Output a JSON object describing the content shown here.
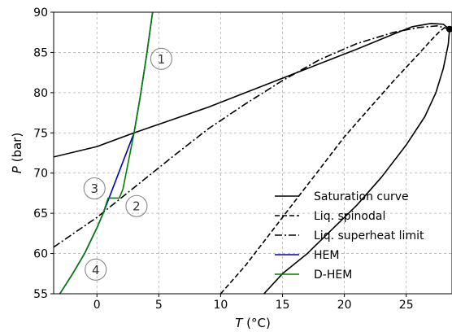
{
  "chart_data": {
    "type": "line",
    "xlabel": "T (°C)",
    "ylabel": "P (bar)",
    "xlim": [
      -3.5,
      28.7
    ],
    "ylim": [
      55,
      90
    ],
    "xticks": [
      0,
      5,
      10,
      15,
      20,
      25
    ],
    "yticks": [
      55,
      60,
      65,
      70,
      75,
      80,
      85,
      90
    ],
    "grid": true,
    "legend_position": "lower-right",
    "series": [
      {
        "name": "Saturation curve",
        "color": "#000000",
        "style": "solid",
        "x": [
          -3.5,
          0,
          3,
          6,
          9,
          12,
          15,
          18,
          21,
          24,
          25.5,
          27,
          28.0,
          28.4,
          28.5,
          28.4,
          28.0,
          27.4,
          26.5,
          25.0,
          23.0,
          21.0,
          19.0,
          17.0,
          15.0,
          13.5
        ],
        "y": [
          72.0,
          73.3,
          75.0,
          76.6,
          78.2,
          80.0,
          81.8,
          83.6,
          85.4,
          87.3,
          88.2,
          88.6,
          88.5,
          88.0,
          87.9,
          86.0,
          83.0,
          80.0,
          77.0,
          73.5,
          69.5,
          66.0,
          63.0,
          60.0,
          57.5,
          55.0
        ]
      },
      {
        "name": "Liq. spinodal",
        "color": "#000000",
        "style": "dashed",
        "x": [
          10.0,
          12.0,
          14.0,
          16.0,
          18.0,
          20.0,
          22.0,
          24.0,
          26.0,
          27.0,
          27.7,
          28.2,
          28.5
        ],
        "y": [
          55.0,
          58.5,
          62.5,
          66.5,
          70.5,
          74.5,
          78.0,
          81.5,
          84.8,
          86.5,
          87.6,
          88.2,
          88.0
        ]
      },
      {
        "name": "Liq. superheat limit",
        "color": "#000000",
        "style": "dashdot",
        "x": [
          -3.5,
          0,
          3,
          6,
          9,
          12,
          15,
          18,
          21,
          24,
          26,
          27.5,
          28.5
        ],
        "y": [
          60.8,
          64.5,
          68.2,
          71.9,
          75.5,
          78.6,
          81.5,
          84.1,
          86.1,
          87.5,
          88.1,
          88.3,
          87.9
        ]
      },
      {
        "name": "HEM",
        "color": "#0000cc",
        "style": "solid",
        "x": [
          -3.0,
          -2.0,
          -1.0,
          0.0,
          0.5,
          1.0,
          2.0,
          3.0,
          3.5,
          4.0,
          4.5
        ],
        "y": [
          55.0,
          57.4,
          60.0,
          63.2,
          65.0,
          67.0,
          71.0,
          75.0,
          79.5,
          84.5,
          90.0
        ]
      },
      {
        "name": "D-HEM",
        "color": "#008000",
        "style": "solid",
        "x": [
          -3.0,
          -2.0,
          -1.0,
          0.0,
          0.5,
          0.9,
          1.8,
          2.1,
          3.0,
          3.5,
          4.0,
          4.5
        ],
        "y": [
          55.0,
          57.4,
          60.0,
          63.2,
          65.0,
          66.9,
          66.9,
          68.0,
          75.0,
          79.5,
          84.5,
          90.0
        ]
      }
    ],
    "critical_point": {
      "x": 28.5,
      "y": 87.9
    },
    "annotations": [
      {
        "label": "1",
        "x": 5.2,
        "y": 84.2
      },
      {
        "label": "2",
        "x": 3.2,
        "y": 65.9
      },
      {
        "label": "3",
        "x": -0.2,
        "y": 68.1
      },
      {
        "label": "4",
        "x": -0.1,
        "y": 58.0
      }
    ]
  }
}
